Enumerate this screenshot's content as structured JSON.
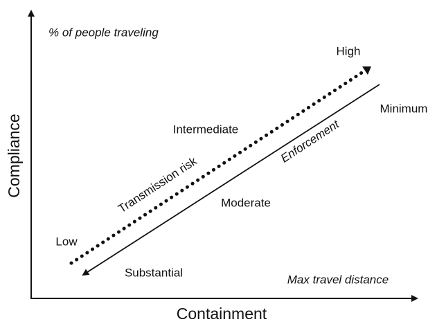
{
  "axes": {
    "y_label": "Compliance",
    "x_label": "Containment",
    "y_note": "% of people traveling",
    "x_note": "Max travel distance"
  },
  "transmission": {
    "label": "Transmission risk",
    "low": "Low",
    "mid": "Intermediate",
    "high": "High"
  },
  "enforcement": {
    "label": "Enforcement",
    "low": "Minimum",
    "mid": "Moderate",
    "high": "Substantial"
  }
}
